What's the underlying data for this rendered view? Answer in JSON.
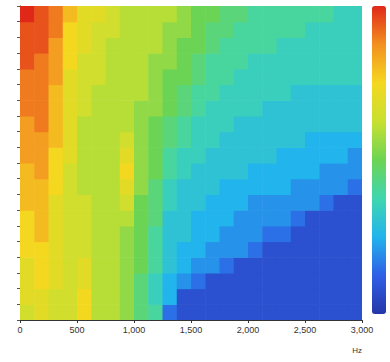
{
  "chart_data": {
    "type": "heatmap",
    "x_label": "Hz",
    "xlim": [
      0,
      3000
    ],
    "xticks": [
      0,
      500,
      1000,
      1500,
      2000,
      2500,
      3000
    ],
    "ylim": [
      0,
      20
    ],
    "yticks": [
      0,
      1,
      2,
      3,
      4,
      5,
      6,
      7,
      8,
      9,
      10,
      11,
      12,
      13,
      14,
      15,
      16,
      17,
      18,
      19,
      20
    ],
    "tick_labels": "x",
    "x_edges": [
      0,
      125,
      250,
      375,
      500,
      625,
      750,
      875,
      1000,
      1125,
      1250,
      1375,
      1500,
      1625,
      1750,
      1875,
      2000,
      2125,
      2250,
      2375,
      2500,
      2625,
      2750,
      2875,
      3000
    ],
    "y_edges": [
      0,
      1,
      2,
      3,
      4,
      5,
      6,
      7,
      8,
      9,
      10,
      11,
      12,
      13,
      14,
      15,
      16,
      17,
      18,
      19,
      20
    ],
    "color_range": [
      0,
      10
    ],
    "cells": [
      [
        6.5,
        7,
        6.5,
        6.5,
        7.5,
        6,
        6,
        5.5,
        4.5,
        4,
        1.5,
        0.8,
        0.8,
        0.8,
        0.8,
        0.8,
        0.8,
        0.8,
        0.8,
        0.8,
        0.8,
        0.8,
        0.8,
        0.8
      ],
      [
        7,
        7,
        6.5,
        6.5,
        7.5,
        6,
        6,
        5.5,
        4.5,
        3.5,
        2.5,
        0.8,
        0.8,
        0.8,
        0.8,
        0.8,
        0.8,
        0.8,
        0.8,
        0.8,
        0.8,
        0.8,
        0.8,
        0.8
      ],
      [
        7,
        7.5,
        7,
        6.5,
        7,
        6,
        6,
        5.5,
        4.5,
        3.5,
        2.5,
        2,
        1.5,
        0.8,
        0.8,
        0.8,
        0.8,
        0.8,
        0.8,
        0.8,
        0.8,
        0.8,
        0.8,
        0.8
      ],
      [
        7,
        7.5,
        7,
        6.5,
        7,
        6,
        6,
        5.5,
        5,
        4,
        3,
        2.5,
        2,
        2,
        1.5,
        0.8,
        0.8,
        0.8,
        0.8,
        0.8,
        0.8,
        0.8,
        0.8,
        0.8
      ],
      [
        7.5,
        7.5,
        7,
        6.5,
        6.5,
        6,
        6,
        5.5,
        5,
        4,
        3,
        2.5,
        2.5,
        2,
        2,
        2,
        1.5,
        0.8,
        0.8,
        0.8,
        0.8,
        0.8,
        0.8,
        0.8
      ],
      [
        7.5,
        8,
        7,
        6.5,
        6.5,
        6,
        6,
        5.5,
        5,
        4,
        3,
        3,
        2.5,
        2.5,
        2,
        2,
        2,
        1.5,
        1.5,
        0.8,
        0.8,
        0.8,
        0.8,
        0.8
      ],
      [
        7.5,
        8,
        7,
        6.5,
        6.5,
        6,
        6,
        6,
        5,
        4.5,
        3,
        3,
        2.5,
        2.5,
        2.5,
        2,
        2,
        2,
        2,
        1.5,
        0.8,
        0.8,
        0.8,
        0.8
      ],
      [
        8,
        8,
        7,
        6.5,
        6.5,
        6,
        6,
        6.5,
        5,
        4.5,
        3.5,
        3,
        3,
        2.5,
        2.5,
        2.5,
        2,
        2,
        2,
        2,
        2,
        1.5,
        0.8,
        0.8
      ],
      [
        8,
        8,
        7.5,
        6.5,
        6,
        6,
        6,
        7,
        5.5,
        4.5,
        3.5,
        3,
        3,
        3,
        2.5,
        2.5,
        2.5,
        2.5,
        2.5,
        2,
        2,
        2,
        2,
        1.5
      ],
      [
        8,
        8.5,
        7.5,
        6.5,
        6,
        6,
        6,
        7.5,
        5.5,
        5,
        4,
        3.5,
        3,
        3,
        3,
        3,
        2.5,
        2.5,
        2.5,
        2.5,
        2.5,
        2,
        2,
        2
      ],
      [
        8.5,
        8.5,
        7.5,
        7,
        6,
        6,
        6,
        7,
        5.5,
        5,
        4,
        3.5,
        3.5,
        3,
        3,
        3,
        3,
        3,
        2.5,
        2.5,
        2.5,
        2.5,
        2.5,
        2
      ],
      [
        8.5,
        8.5,
        8,
        7,
        6,
        6,
        6,
        6.5,
        5.5,
        5,
        4.5,
        4,
        3.5,
        3.5,
        3,
        3,
        3,
        3,
        3,
        3,
        2.5,
        2.5,
        2.5,
        2.5
      ],
      [
        8.5,
        9,
        8,
        7,
        6,
        6,
        6,
        6,
        5.5,
        5,
        4.5,
        4,
        3.5,
        3.5,
        3.5,
        3,
        3,
        3,
        3,
        3,
        3,
        3,
        3,
        3
      ],
      [
        9,
        9,
        8,
        7,
        6.5,
        6,
        6,
        6,
        5.5,
        5.5,
        5,
        4.5,
        4,
        3.5,
        3.5,
        3.5,
        3.5,
        3,
        3,
        3,
        3,
        3,
        3,
        3
      ],
      [
        9,
        9,
        8,
        7,
        6.5,
        6,
        6,
        6,
        6,
        5.5,
        5,
        4.5,
        4,
        4,
        3.5,
        3.5,
        3.5,
        3.5,
        3.5,
        3,
        3,
        3,
        3,
        3
      ],
      [
        9,
        9,
        8.5,
        7,
        6.5,
        6.5,
        6,
        6,
        6,
        5.5,
        5,
        5,
        4.5,
        4,
        4,
        3.5,
        3.5,
        3.5,
        3.5,
        3.5,
        3.5,
        3.5,
        3.5,
        3.5
      ],
      [
        9.5,
        9,
        8.5,
        7.5,
        6.5,
        6.5,
        6,
        6,
        6,
        5.5,
        5.5,
        5,
        4.5,
        4,
        4,
        4,
        3.5,
        3.5,
        3.5,
        3.5,
        3.5,
        3.5,
        3.5,
        3.5
      ],
      [
        9.5,
        9.5,
        8.5,
        7.5,
        7,
        6.5,
        6,
        6,
        6,
        6,
        5.5,
        5,
        5,
        4.5,
        4,
        4,
        4,
        4,
        3.5,
        3.5,
        3.5,
        3.5,
        3.5,
        3.5
      ],
      [
        9.5,
        9.5,
        9,
        7.5,
        7,
        6.5,
        6.5,
        6,
        6,
        6,
        5.5,
        5.5,
        5,
        4.5,
        4.5,
        4,
        4,
        4,
        4,
        4,
        3.5,
        3.5,
        3.5,
        3.5
      ],
      [
        10,
        9.5,
        9,
        8,
        7,
        7,
        6.5,
        6,
        6,
        6,
        6,
        5.5,
        5,
        5,
        4.5,
        4.5,
        4,
        4,
        4,
        4,
        4,
        4,
        3.5,
        3.5
      ]
    ]
  }
}
